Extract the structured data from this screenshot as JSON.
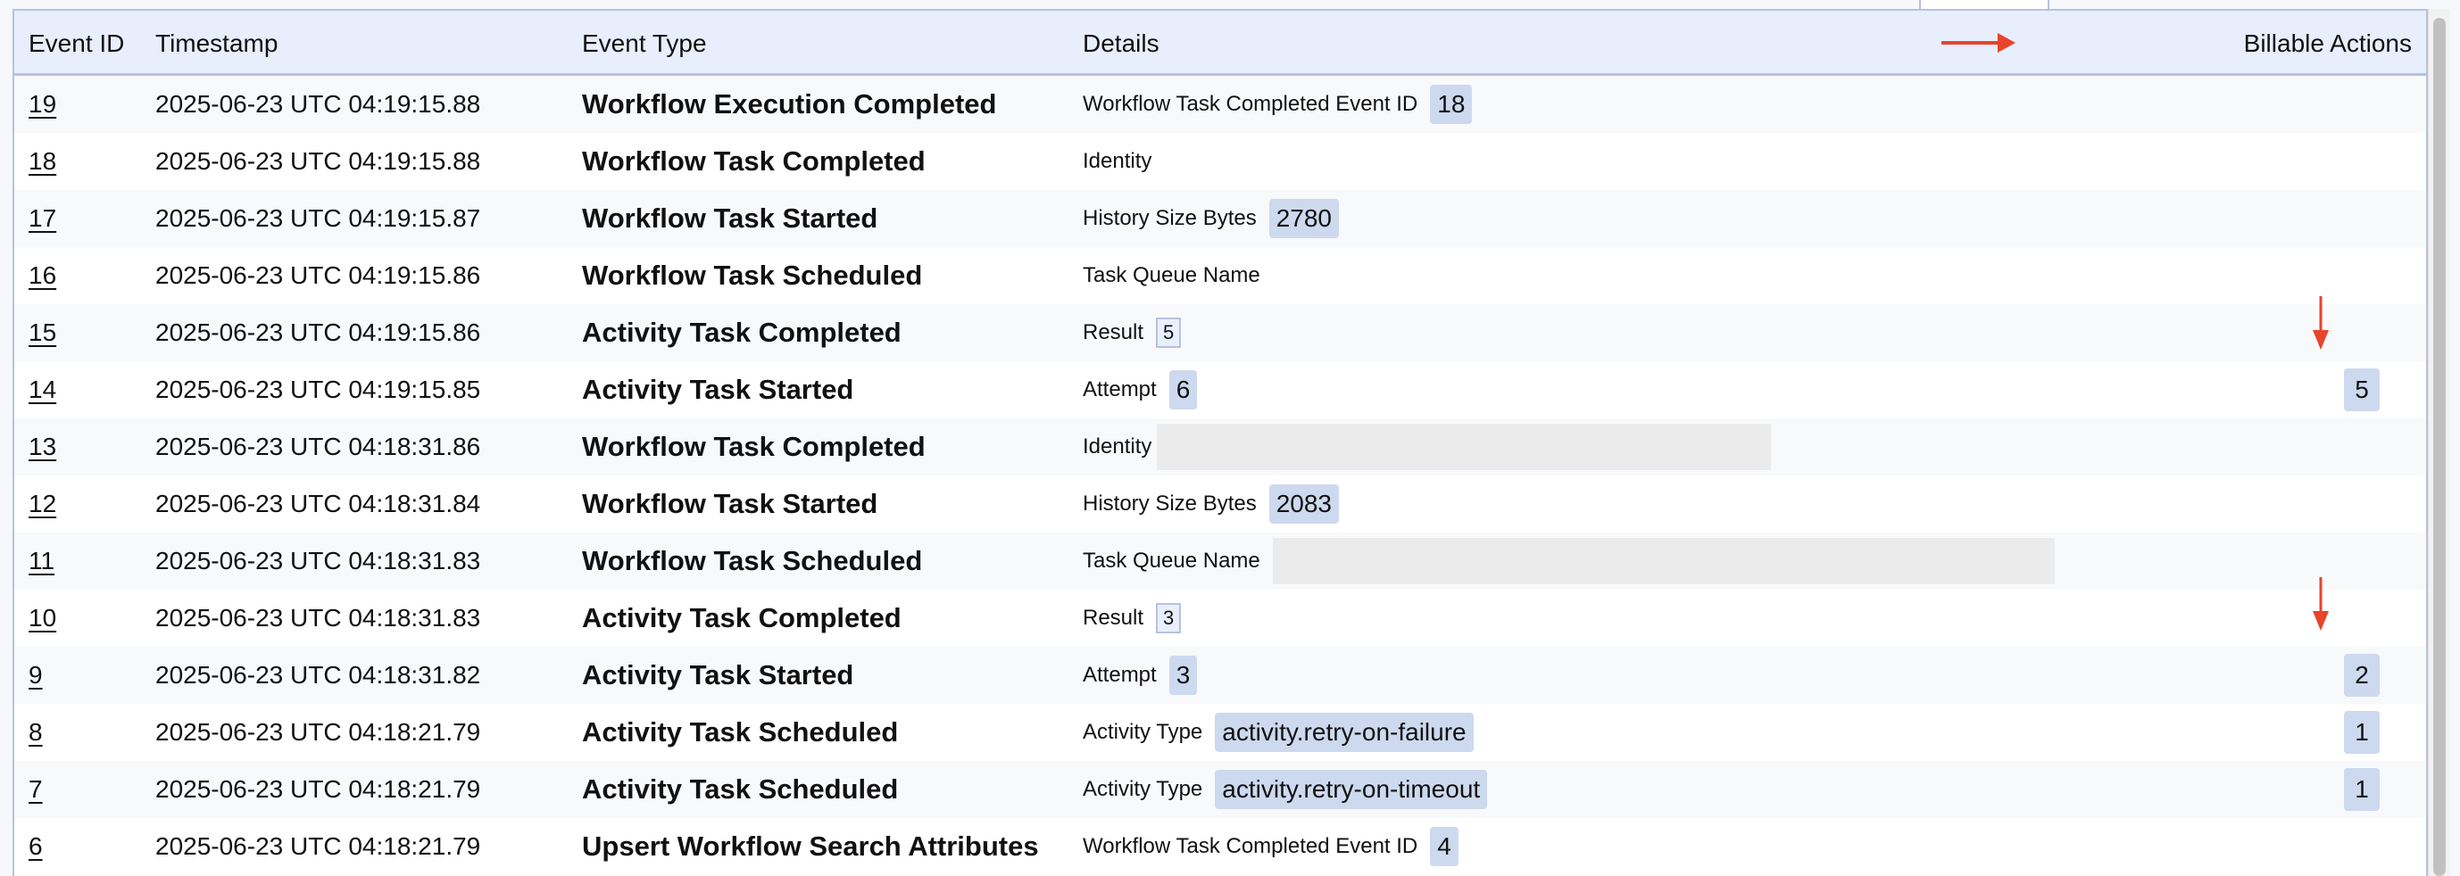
{
  "header": {
    "event_id": "Event ID",
    "timestamp": "Timestamp",
    "event_type": "Event Type",
    "details": "Details",
    "billable": "Billable Actions"
  },
  "annotation_color": "#e8432b",
  "rows": [
    {
      "id": "19",
      "ts": "2025-06-23 UTC 04:19:15.88",
      "type": "Workflow Execution Completed",
      "label": "Workflow Task Completed Event ID",
      "value": "18",
      "style": "badge",
      "bill": ""
    },
    {
      "id": "18",
      "ts": "2025-06-23 UTC 04:19:15.88",
      "type": "Workflow Task Completed",
      "label": "Identity",
      "value": "",
      "style": "none",
      "bill": ""
    },
    {
      "id": "17",
      "ts": "2025-06-23 UTC 04:19:15.87",
      "type": "Workflow Task Started",
      "label": "History Size Bytes",
      "value": "2780",
      "style": "badge",
      "bill": ""
    },
    {
      "id": "16",
      "ts": "2025-06-23 UTC 04:19:15.86",
      "type": "Workflow Task Scheduled",
      "label": "Task Queue Name",
      "value": "",
      "style": "none",
      "bill": ""
    },
    {
      "id": "15",
      "ts": "2025-06-23 UTC 04:19:15.86",
      "type": "Activity Task Completed",
      "label": "Result",
      "value": "5",
      "style": "outline",
      "bill": ""
    },
    {
      "id": "14",
      "ts": "2025-06-23 UTC 04:19:15.85",
      "type": "Activity Task Started",
      "label": "Attempt",
      "value": "6",
      "style": "badge",
      "bill": "5"
    },
    {
      "id": "13",
      "ts": "2025-06-23 UTC 04:18:31.86",
      "type": "Workflow Task Completed",
      "label": "Identity",
      "value": "",
      "style": "redact-short",
      "bill": ""
    },
    {
      "id": "12",
      "ts": "2025-06-23 UTC 04:18:31.84",
      "type": "Workflow Task Started",
      "label": "History Size Bytes",
      "value": "2083",
      "style": "badge",
      "bill": ""
    },
    {
      "id": "11",
      "ts": "2025-06-23 UTC 04:18:31.83",
      "type": "Workflow Task Scheduled",
      "label": "Task Queue Name",
      "value": "",
      "style": "redact-long",
      "bill": ""
    },
    {
      "id": "10",
      "ts": "2025-06-23 UTC 04:18:31.83",
      "type": "Activity Task Completed",
      "label": "Result",
      "value": "3",
      "style": "outline",
      "bill": ""
    },
    {
      "id": "9",
      "ts": "2025-06-23 UTC 04:18:31.82",
      "type": "Activity Task Started",
      "label": "Attempt",
      "value": "3",
      "style": "badge",
      "bill": "2"
    },
    {
      "id": "8",
      "ts": "2025-06-23 UTC 04:18:21.79",
      "type": "Activity Task Scheduled",
      "label": "Activity Type",
      "value": "activity.retry-on-failure",
      "style": "badge",
      "bill": "1"
    },
    {
      "id": "7",
      "ts": "2025-06-23 UTC 04:18:21.79",
      "type": "Activity Task Scheduled",
      "label": "Activity Type",
      "value": "activity.retry-on-timeout",
      "style": "badge",
      "bill": "1"
    },
    {
      "id": "6",
      "ts": "2025-06-23 UTC 04:18:21.79",
      "type": "Upsert Workflow Search Attributes",
      "label": "Workflow Task Completed Event ID",
      "value": "4",
      "style": "badge",
      "bill": ""
    }
  ]
}
